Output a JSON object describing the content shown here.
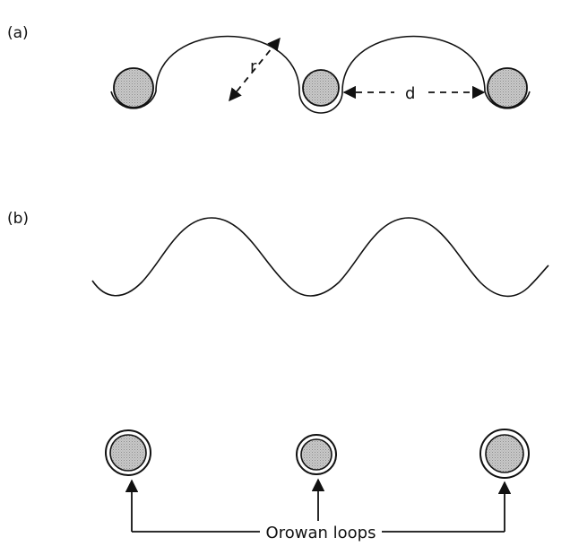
{
  "labels": {
    "panel_a": "(a)",
    "panel_b": "(b)",
    "radius": "r",
    "spacing": "d",
    "loops": "Orowan loops"
  },
  "colors": {
    "ink": "#111111",
    "particle_fill": "#c4c4c4",
    "background": "#ffffff"
  }
}
